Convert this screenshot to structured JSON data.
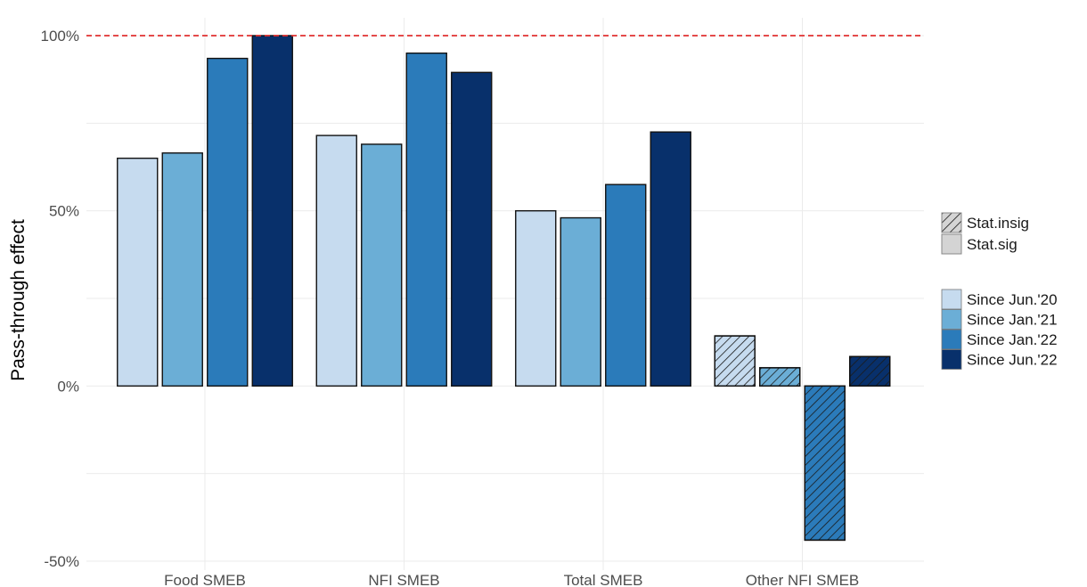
{
  "chart_data": {
    "type": "bar",
    "title": "",
    "xlabel": "",
    "ylabel": "Pass-through effect",
    "ylim": [
      -50,
      100
    ],
    "y_ticks": [
      "-50%",
      "0%",
      "50%",
      "100%"
    ],
    "grid": true,
    "reference_line": {
      "value": 100,
      "style": "dashed",
      "color": "#e03030"
    },
    "categories": [
      "Food SMEB",
      "NFI SMEB",
      "Total SMEB",
      "Other NFI SMEB"
    ],
    "series": [
      {
        "name": "Since Jun.'20",
        "color": "#c6dbef",
        "values": [
          65,
          71.5,
          50,
          14.3
        ],
        "significant": [
          true,
          true,
          true,
          false
        ]
      },
      {
        "name": "Since Jan.'21",
        "color": "#6baed6",
        "values": [
          66.5,
          69,
          48,
          5.2
        ],
        "significant": [
          true,
          true,
          true,
          false
        ]
      },
      {
        "name": "Since Jan.'22",
        "color": "#2b7bba",
        "values": [
          93.5,
          95,
          57.5,
          -44
        ],
        "significant": [
          true,
          true,
          true,
          false
        ]
      },
      {
        "name": "Since Jun.'22",
        "color": "#08306b",
        "values": [
          100,
          89.5,
          72.5,
          8.4
        ],
        "significant": [
          true,
          true,
          true,
          false
        ]
      }
    ],
    "significance_legend": [
      "Stat.insig",
      "Stat.sig"
    ],
    "legend_position": "right"
  }
}
